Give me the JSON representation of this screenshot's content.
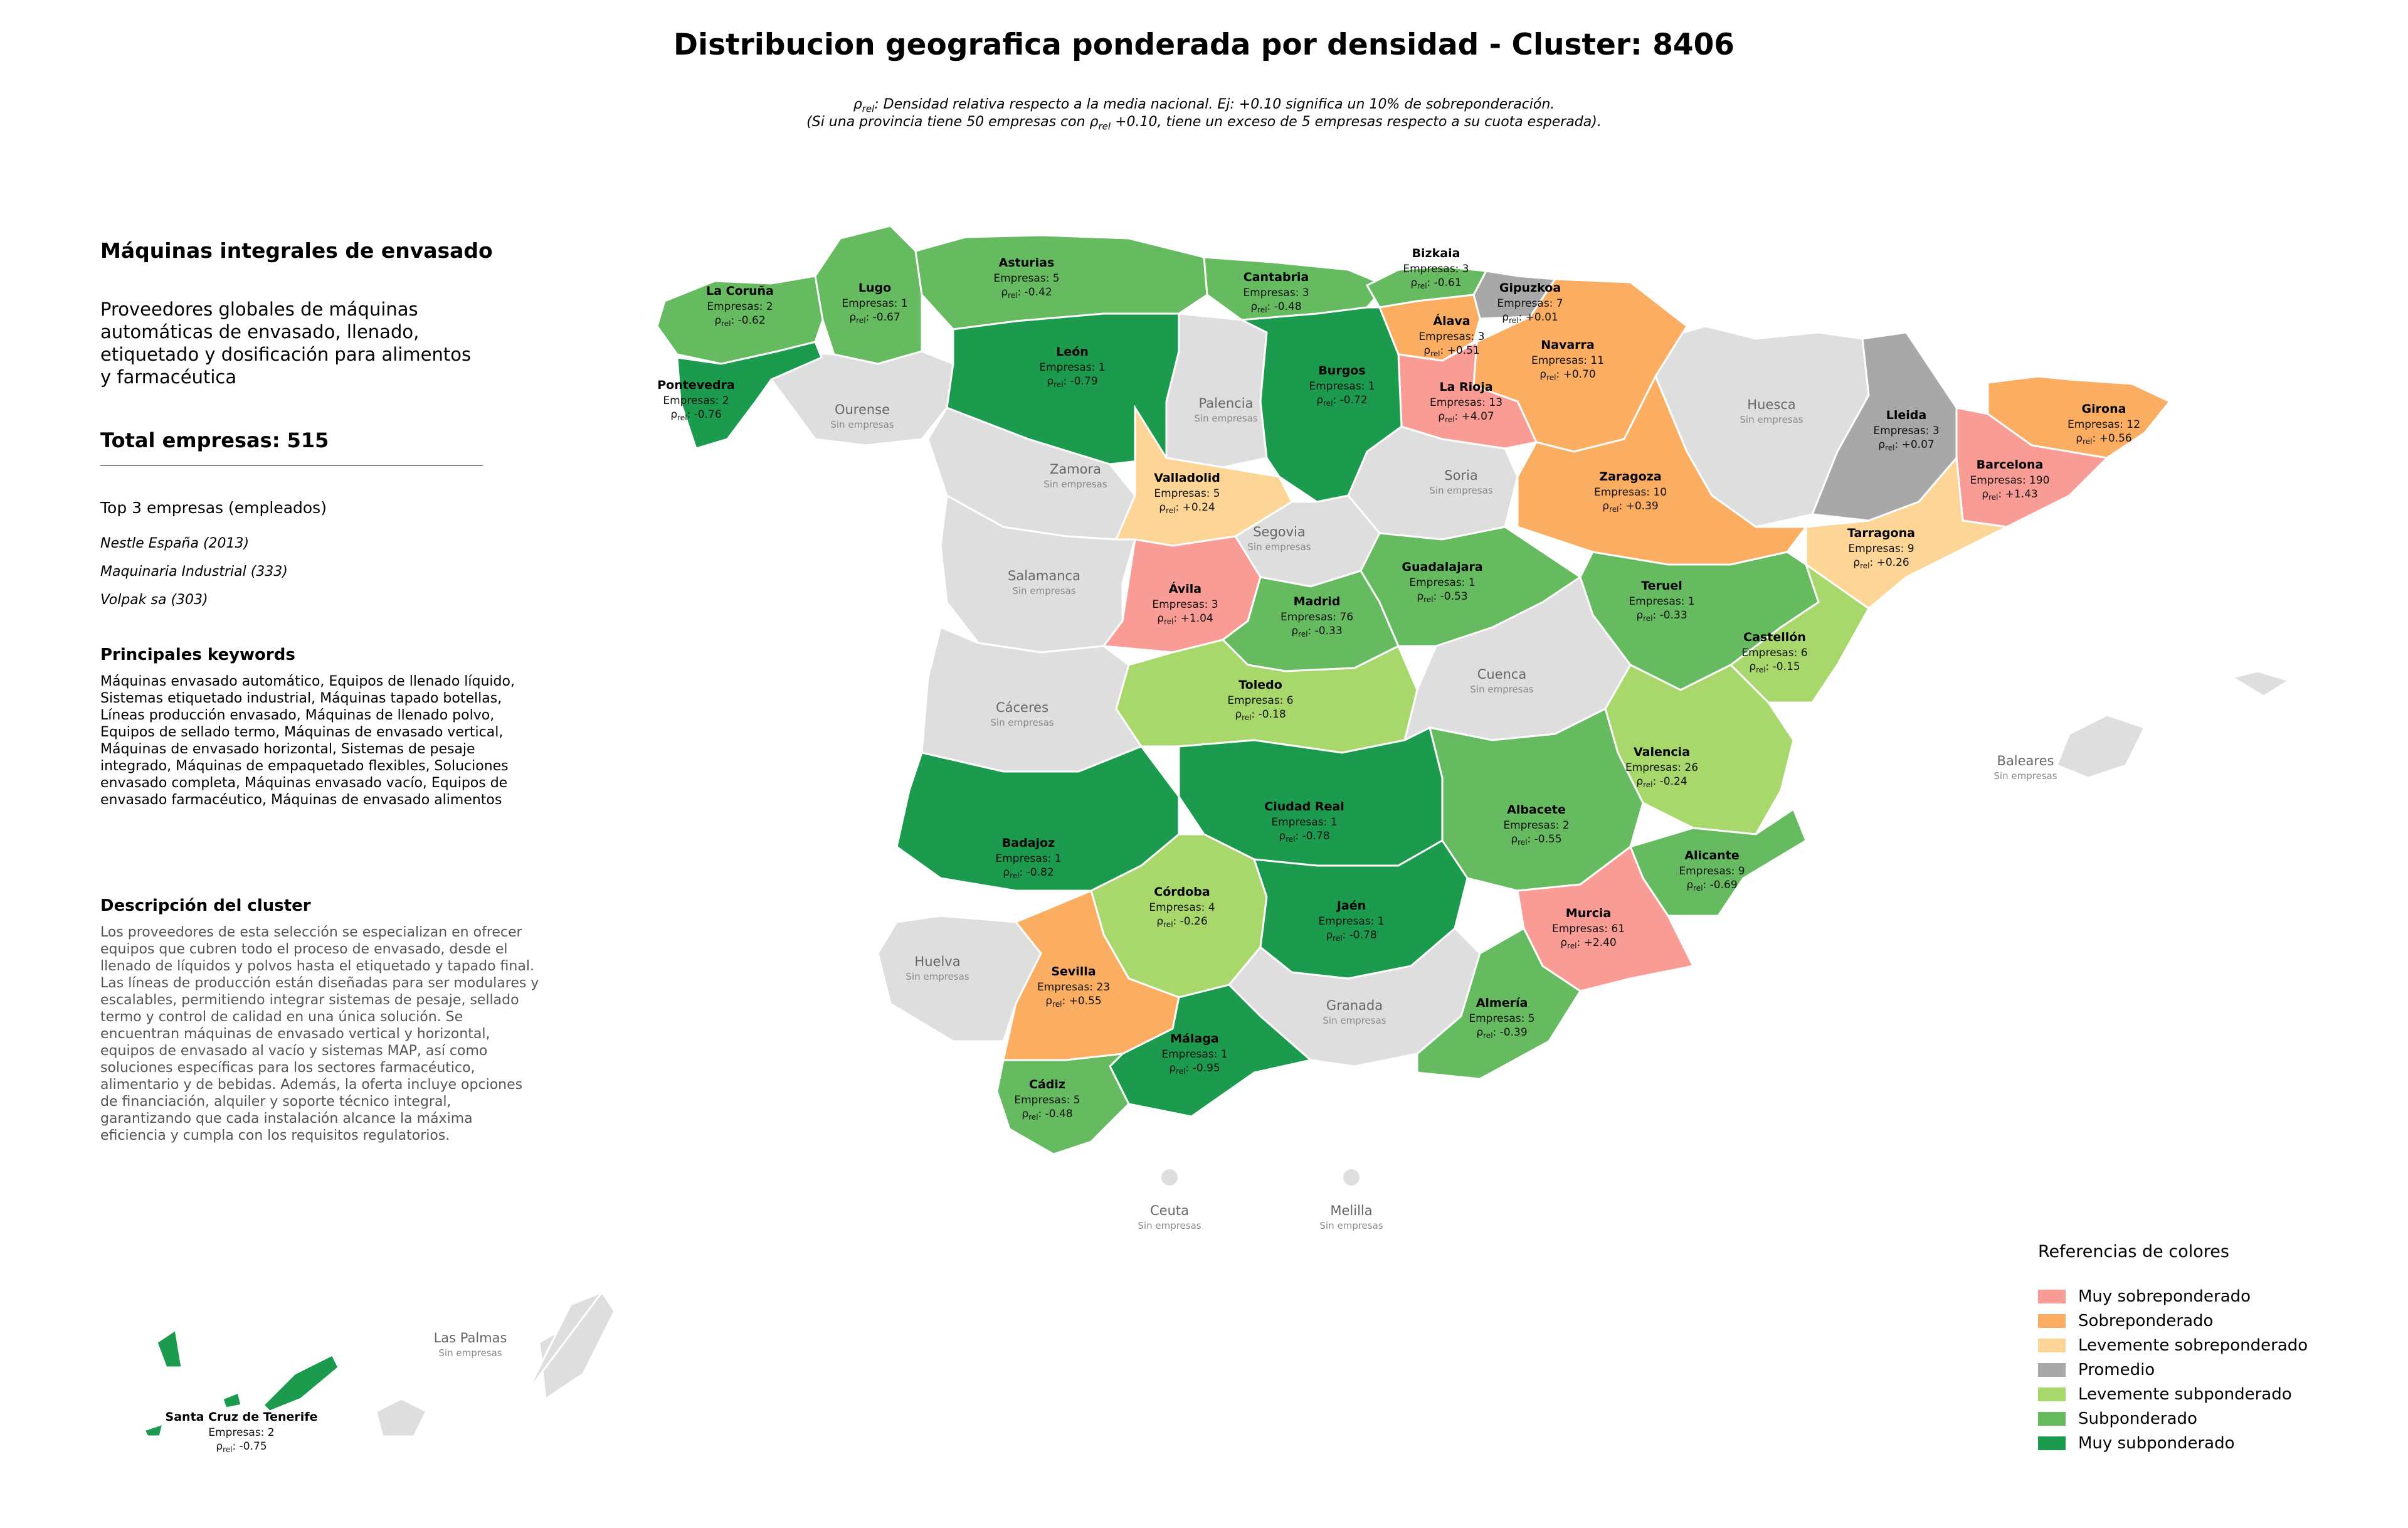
{
  "title": "Distribucion geografica ponderada por densidad - Cluster: 8406",
  "subtitle_1": "ρrel: Densidad relativa respecto a la media nacional. Ej: +0.10 significa un 10% de sobreponderación.",
  "subtitle_2": "(Si una provincia tiene 50 empresas con ρrel +0.10, tiene un exceso de 5 empresas respecto a su cuota esperada).",
  "panel": {
    "cluster_title": "Máquinas integrales de envasado",
    "cluster_desc": "Proveedores globales de máquinas\nautomáticas de envasado, llenado,\netiquetado y dosificación para alimentos\ny farmacéutica",
    "total": "Total empresas: 515",
    "top3_title": "Top 3 empresas (empleados)",
    "top3": [
      "Nestle España (2013)",
      "Maquinaria Industrial (333)",
      "Volpak sa (303)"
    ],
    "keywords_title": "Principales keywords",
    "keywords": "Máquinas envasado automático, Equipos de llenado líquido, Sistemas etiquetado industrial, Máquinas tapado botellas, Líneas producción envasado, Máquinas de llenado polvo, Equipos de sellado termo, Máquinas de envasado vertical, Máquinas de envasado horizontal, Sistemas de pesaje integrado, Máquinas de empaquetado flexibles, Soluciones envasado completa, Máquinas envasado vacío, Equipos de envasado farmacéutico, Máquinas de envasado alimentos",
    "description_title": "Descripción del cluster",
    "description": "Los proveedores de esta selección se especializan en ofrecer equipos que cubren todo el proceso de envasado, desde el llenado de líquidos y polvos hasta el etiquetado y tapado final. Las líneas de producción están diseñadas para ser modulares y escalables, permitiendo integrar sistemas de pesaje, sellado termo y control de calidad en una única solución. Se encuentran máquinas de envasado vertical y horizontal, equipos de envasado al vacío y sistemas MAP, así como soluciones específicas para los sectores farmacéutico, alimentario y de bebidas. Además, la oferta incluye opciones de financiación, alquiler y soporte técnico integral, garantizando que cada instalación alcance la máxima eficiencia y cumpla con los requisitos regulatorios."
  },
  "legend": {
    "title": "Referencias de colores",
    "items": [
      {
        "label": "Muy sobreponderado",
        "color": "#f99c96"
      },
      {
        "label": "Sobreponderado",
        "color": "#fbae62"
      },
      {
        "label": "Levemente sobreponderado",
        "color": "#fdd596"
      },
      {
        "label": "Promedio",
        "color": "#a8a8a8"
      },
      {
        "label": "Levemente subponderado",
        "color": "#a8d86c"
      },
      {
        "label": "Subponderado",
        "color": "#66bb60"
      },
      {
        "label": "Muy subponderado",
        "color": "#1c9a4e"
      }
    ]
  },
  "labels": {
    "empresas_prefix": "Empresas: ",
    "rho": "ρ",
    "rel": "rel",
    "sin_empresas": "Sin empresas"
  },
  "map_data": {
    "provinces": [
      {
        "name": "La Coruña",
        "empresas": 2,
        "rho": "-0.62",
        "category": "Subponderado"
      },
      {
        "name": "Lugo",
        "empresas": 1,
        "rho": "-0.67",
        "category": "Subponderado"
      },
      {
        "name": "Asturias",
        "empresas": 5,
        "rho": "-0.42",
        "category": "Subponderado"
      },
      {
        "name": "Cantabria",
        "empresas": 3,
        "rho": "-0.48",
        "category": "Subponderado"
      },
      {
        "name": "Bizkaia",
        "empresas": 3,
        "rho": "-0.61",
        "category": "Subponderado"
      },
      {
        "name": "Gipuzkoa",
        "empresas": 7,
        "rho": "+0.01",
        "category": "Promedio"
      },
      {
        "name": "Álava",
        "empresas": 3,
        "rho": "+0.51",
        "category": "Sobreponderado"
      },
      {
        "name": "Navarra",
        "empresas": 11,
        "rho": "+0.70",
        "category": "Sobreponderado"
      },
      {
        "name": "La Rioja",
        "empresas": 13,
        "rho": "+4.07",
        "category": "Muy sobreponderado"
      },
      {
        "name": "Pontevedra",
        "empresas": 2,
        "rho": "-0.76",
        "category": "Muy subponderado"
      },
      {
        "name": "León",
        "empresas": 1,
        "rho": "-0.79",
        "category": "Muy subponderado"
      },
      {
        "name": "Burgos",
        "empresas": 1,
        "rho": "-0.72",
        "category": "Muy subponderado"
      },
      {
        "name": "Valladolid",
        "empresas": 5,
        "rho": "+0.24",
        "category": "Levemente sobreponderado"
      },
      {
        "name": "Lleida",
        "empresas": 3,
        "rho": "+0.07",
        "category": "Promedio"
      },
      {
        "name": "Girona",
        "empresas": 12,
        "rho": "+0.56",
        "category": "Sobreponderado"
      },
      {
        "name": "Barcelona",
        "empresas": 190,
        "rho": "+1.43",
        "category": "Muy sobreponderado"
      },
      {
        "name": "Zaragoza",
        "empresas": 10,
        "rho": "+0.39",
        "category": "Sobreponderado"
      },
      {
        "name": "Tarragona",
        "empresas": 9,
        "rho": "+0.26",
        "category": "Levemente sobreponderado"
      },
      {
        "name": "Ávila",
        "empresas": 3,
        "rho": "+1.04",
        "category": "Muy sobreponderado"
      },
      {
        "name": "Madrid",
        "empresas": 76,
        "rho": "-0.33",
        "category": "Subponderado"
      },
      {
        "name": "Guadalajara",
        "empresas": 1,
        "rho": "-0.53",
        "category": "Subponderado"
      },
      {
        "name": "Teruel",
        "empresas": 1,
        "rho": "-0.33",
        "category": "Subponderado"
      },
      {
        "name": "Castellón",
        "empresas": 6,
        "rho": "-0.15",
        "category": "Levemente subponderado"
      },
      {
        "name": "Toledo",
        "empresas": 6,
        "rho": "-0.18",
        "category": "Levemente subponderado"
      },
      {
        "name": "Valencia",
        "empresas": 26,
        "rho": "-0.24",
        "category": "Levemente subponderado"
      },
      {
        "name": "Ciudad Real",
        "empresas": 1,
        "rho": "-0.78",
        "category": "Muy subponderado"
      },
      {
        "name": "Albacete",
        "empresas": 2,
        "rho": "-0.55",
        "category": "Subponderado"
      },
      {
        "name": "Badajoz",
        "empresas": 1,
        "rho": "-0.82",
        "category": "Muy subponderado"
      },
      {
        "name": "Alicante",
        "empresas": 9,
        "rho": "-0.69",
        "category": "Subponderado"
      },
      {
        "name": "Córdoba",
        "empresas": 4,
        "rho": "-0.26",
        "category": "Levemente subponderado"
      },
      {
        "name": "Jaén",
        "empresas": 1,
        "rho": "-0.78",
        "category": "Muy subponderado"
      },
      {
        "name": "Murcia",
        "empresas": 61,
        "rho": "+2.40",
        "category": "Muy sobreponderado"
      },
      {
        "name": "Sevilla",
        "empresas": 23,
        "rho": "+0.55",
        "category": "Sobreponderado"
      },
      {
        "name": "Almería",
        "empresas": 5,
        "rho": "-0.39",
        "category": "Subponderado"
      },
      {
        "name": "Málaga",
        "empresas": 1,
        "rho": "-0.95",
        "category": "Muy subponderado"
      },
      {
        "name": "Cádiz",
        "empresas": 5,
        "rho": "-0.48",
        "category": "Subponderado"
      },
      {
        "name": "Santa Cruz de Tenerife",
        "empresas": 2,
        "rho": "-0.75",
        "category": "Muy subponderado"
      }
    ],
    "empty_provinces": [
      "Ourense",
      "Palencia",
      "Zamora",
      "Huesca",
      "Soria",
      "Segovia",
      "Salamanca",
      "Cuenca",
      "Cáceres",
      "Huelva",
      "Granada",
      "Baleares",
      "Ceuta",
      "Melilla",
      "Las Palmas"
    ],
    "empty_color": "#dedede"
  }
}
